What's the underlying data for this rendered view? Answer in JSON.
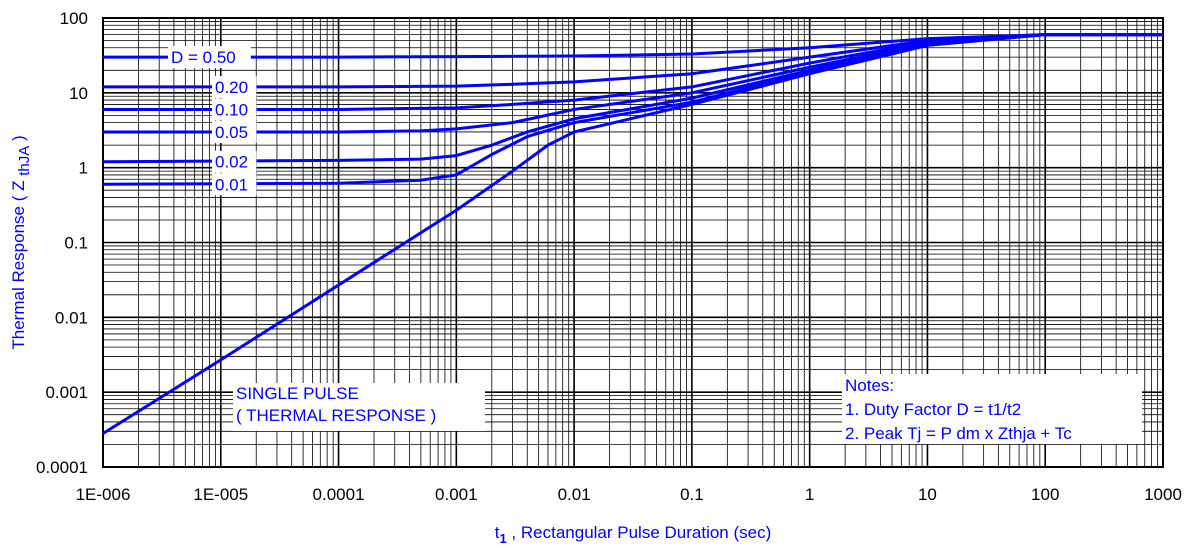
{
  "chart_data": {
    "type": "line",
    "x_scale": "log",
    "y_scale": "log",
    "xlim": [
      1e-06,
      1000
    ],
    "ylim": [
      0.0001,
      100
    ],
    "xlabel": "t",
    "xlabel_sub": "1",
    "xlabel_rest": " , Rectangular Pulse Duration (sec)",
    "ylabel": "Thermal Response ( Z ",
    "ylabel_sub": "thJA",
    "ylabel_rest": " )",
    "x_ticks": [
      {
        "value": 1e-06,
        "label": "1E-006"
      },
      {
        "value": 1e-05,
        "label": "1E-005"
      },
      {
        "value": 0.0001,
        "label": "0.0001"
      },
      {
        "value": 0.001,
        "label": "0.001"
      },
      {
        "value": 0.01,
        "label": "0.01"
      },
      {
        "value": 0.1,
        "label": "0.1"
      },
      {
        "value": 1,
        "label": "1"
      },
      {
        "value": 10,
        "label": "10"
      },
      {
        "value": 100,
        "label": "100"
      },
      {
        "value": 1000,
        "label": "1000"
      }
    ],
    "y_ticks": [
      {
        "value": 100,
        "label": "100"
      },
      {
        "value": 10,
        "label": "10"
      },
      {
        "value": 1,
        "label": "1"
      },
      {
        "value": 0.1,
        "label": "0.1"
      },
      {
        "value": 0.01,
        "label": "0.01"
      },
      {
        "value": 0.001,
        "label": "0.001"
      },
      {
        "value": 0.0001,
        "label": "0.0001"
      }
    ],
    "grid": true,
    "line_color": "#0000ff",
    "series": [
      {
        "name": "D = 0.50",
        "x": [
          1e-06,
          0.0001,
          0.001,
          0.01,
          0.1,
          1,
          10,
          100,
          1000
        ],
        "y": [
          30,
          30,
          30.5,
          31,
          33,
          40,
          53,
          60,
          60
        ]
      },
      {
        "name": "0.20",
        "x": [
          1e-06,
          0.0001,
          0.001,
          0.003,
          0.01,
          0.1,
          1,
          10,
          100,
          1000
        ],
        "y": [
          12,
          12,
          12.3,
          13,
          14,
          18,
          30,
          50,
          60,
          60
        ]
      },
      {
        "name": "0.10",
        "x": [
          1e-06,
          0.0001,
          0.001,
          0.003,
          0.01,
          0.1,
          1,
          10,
          100,
          1000
        ],
        "y": [
          6,
          6,
          6.3,
          7,
          8,
          12,
          25,
          48,
          60,
          60
        ]
      },
      {
        "name": "0.05",
        "x": [
          1e-06,
          0.0001,
          0.0005,
          0.001,
          0.003,
          0.01,
          0.1,
          1,
          10,
          100,
          1000
        ],
        "y": [
          3,
          3,
          3.1,
          3.3,
          4,
          6,
          10,
          22,
          46,
          60,
          60
        ]
      },
      {
        "name": "0.02",
        "x": [
          1e-06,
          0.0001,
          0.0005,
          0.001,
          0.002,
          0.004,
          0.01,
          0.1,
          1,
          10,
          100,
          1000
        ],
        "y": [
          1.2,
          1.25,
          1.3,
          1.45,
          2,
          3,
          4.5,
          8.5,
          20,
          45,
          60,
          60
        ]
      },
      {
        "name": "0.01",
        "x": [
          1e-06,
          0.0001,
          0.0005,
          0.001,
          0.002,
          0.004,
          0.01,
          0.1,
          1,
          10,
          100,
          1000
        ],
        "y": [
          0.6,
          0.62,
          0.68,
          0.8,
          1.5,
          2.6,
          4,
          7.5,
          19,
          44,
          60,
          60
        ]
      },
      {
        "name": "SINGLE PULSE",
        "x": [
          1e-06,
          1e-05,
          0.0001,
          0.001,
          0.003,
          0.006,
          0.01,
          0.1,
          1,
          10,
          100,
          1000
        ],
        "y": [
          0.00028,
          0.0027,
          0.027,
          0.27,
          0.9,
          2,
          3,
          7,
          18,
          43,
          60,
          60
        ]
      }
    ],
    "labels": [
      {
        "series": "D = 0.50",
        "text": "D = 0.50"
      },
      {
        "series": "0.20",
        "text": "0.20"
      },
      {
        "series": "0.10",
        "text": "0.10"
      },
      {
        "series": "0.05",
        "text": "0.05"
      },
      {
        "series": "0.02",
        "text": "0.02"
      },
      {
        "series": "0.01",
        "text": "0.01"
      }
    ],
    "single_pulse_lines": [
      "SINGLE PULSE",
      "( THERMAL RESPONSE )"
    ],
    "notes_lines": [
      "Notes:",
      "1. Duty Factor D = t1/t2",
      "2. Peak Tj = P dm x Zthja + Tc"
    ]
  }
}
